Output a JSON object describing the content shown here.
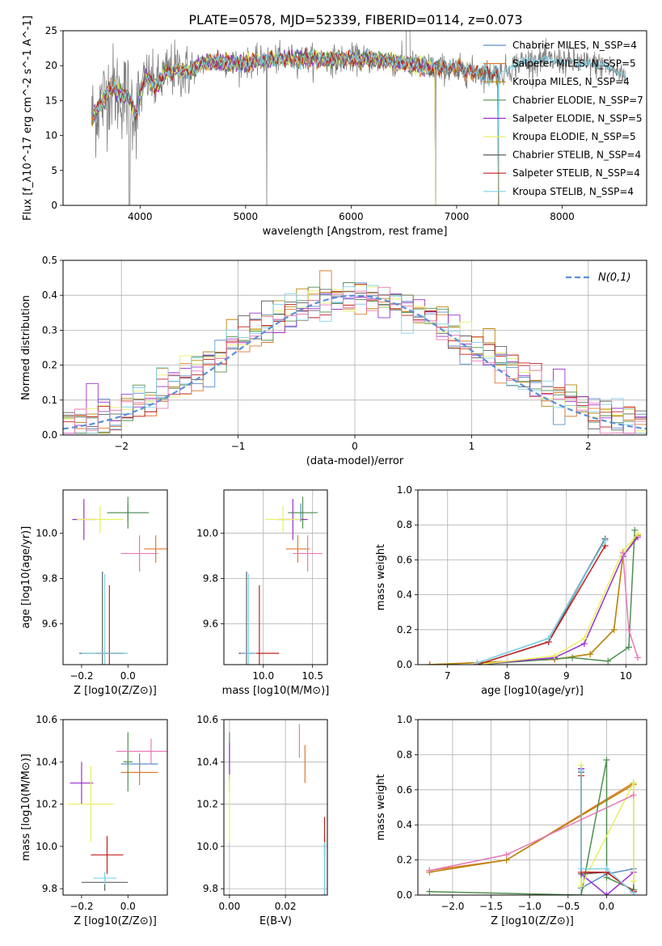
{
  "figure": {
    "title": "PLATE=0578, MJD=52339, FIBERID=0114, z=0.073"
  },
  "colors": {
    "Chabrier MILES": "#5b8fc9",
    "Salpeter MILES": "#e07a2f",
    "Kroupa MILES": "#b8860b",
    "Chabrier ELODIE": "#4f8f4f",
    "Salpeter ELODIE": "#9b30d0",
    "Kroupa ELODIE": "#e8f060",
    "Chabrier STELIB": "#606060",
    "Salpeter STELIB": "#c41e1e",
    "Kroupa STELIB": "#7fd3e8",
    "pink": "#e879b8",
    "normal": "#5b8fd9",
    "grid": "#b0b0b0"
  },
  "chart_data": [
    {
      "id": "spectrum",
      "type": "line",
      "xlabel": "wavelength [Angstrom, rest frame]",
      "ylabel": "Flux [f_λ10^-17 erg cm^-2 s^-1 A^-1]",
      "xlim": [
        3270,
        8800
      ],
      "ylim": [
        0,
        25
      ],
      "xticks": [
        4000,
        5000,
        6000,
        7000,
        8000
      ],
      "yticks": [
        0,
        5,
        10,
        15,
        20,
        25
      ],
      "grid": false,
      "legend_position": "top-right",
      "legend": [
        {
          "name": "Chabrier MILES",
          "sub": "N_SSP=4"
        },
        {
          "name": "Salpeter MILES",
          "sub": "N_SSP=5"
        },
        {
          "name": "Kroupa MILES",
          "sub": "N_SSP=4"
        },
        {
          "name": "Chabrier ELODIE",
          "sub": "N_SSP=7"
        },
        {
          "name": "Salpeter ELODIE",
          "sub": "N_SSP=5"
        },
        {
          "name": "Kroupa ELODIE",
          "sub": "N_SSP=5"
        },
        {
          "name": "Chabrier STELIB",
          "sub": "N_SSP=4"
        },
        {
          "name": "Salpeter STELIB",
          "sub": "N_SSP=4"
        },
        {
          "name": "Kroupa STELIB",
          "sub": "N_SSP=4"
        }
      ],
      "data_profile_x": [
        3540,
        3650,
        3720,
        3800,
        3900,
        3960,
        4050,
        4150,
        4250,
        4350,
        4450,
        4600,
        4800,
        5000,
        5200,
        5400,
        5600,
        5800,
        6000,
        6200,
        6400,
        6600,
        6800,
        7000,
        7200,
        7400,
        7600,
        7800,
        8000,
        8200,
        8400,
        8600
      ],
      "data_profile_y": [
        12.5,
        15.0,
        17.0,
        16.0,
        15.5,
        13.0,
        18.5,
        17.0,
        19.0,
        19.5,
        19.0,
        20.5,
        20.5,
        20.3,
        20.8,
        21.0,
        21.0,
        20.8,
        21.0,
        20.9,
        20.5,
        20.0,
        19.7,
        19.5,
        19.0,
        18.7,
        20.5,
        20.8,
        20.6,
        20.3,
        20.0,
        18.5
      ]
    },
    {
      "id": "residuals",
      "type": "histogram",
      "xlabel": "(data-model)/error",
      "ylabel": "Normed distribution",
      "xlim": [
        -2.5,
        2.5
      ],
      "ylim": [
        0,
        0.5
      ],
      "xticks": [
        -2,
        -1,
        0,
        1,
        2
      ],
      "yticks": [
        0.0,
        0.1,
        0.2,
        0.3,
        0.4,
        0.5
      ],
      "grid": true,
      "legend_position": "top-right",
      "legend": [
        {
          "name": "N(0,1)"
        }
      ],
      "bins_edges_range": [
        -2.5,
        2.5
      ],
      "n_bins": 50
    },
    {
      "id": "age-vs-Z",
      "type": "scatter",
      "xlabel": "Z [log10(Z/Z⊙)]",
      "ylabel": "age  [log10(age/yr)]",
      "xlim": [
        -0.28,
        0.17
      ],
      "ylim": [
        9.42,
        10.19
      ],
      "xticks": [
        -0.2,
        0.0
      ],
      "yticks": [
        9.6,
        9.8,
        10.0
      ],
      "grid": false,
      "points": [
        {
          "series": "Chabrier MILES",
          "x": 0.0,
          "y": 10.09,
          "xerr": 0.09,
          "yerr": 0.04
        },
        {
          "series": "Salpeter MILES",
          "x": 0.12,
          "y": 9.93,
          "xerr": 0.05,
          "yerr": 0.06
        },
        {
          "series": "Chabrier ELODIE",
          "x": 0.0,
          "y": 10.09,
          "xerr": 0.09,
          "yerr": 0.07
        },
        {
          "series": "Salpeter ELODIE",
          "x": -0.19,
          "y": 10.06,
          "xerr": 0.05,
          "yerr": 0.09
        },
        {
          "series": "Kroupa ELODIE",
          "x": -0.12,
          "y": 10.06,
          "xerr": 0.1,
          "yerr": 0.06
        },
        {
          "series": "Chabrier STELIB",
          "x": -0.11,
          "y": 9.47,
          "xerr": 0.1,
          "yerr": 0.36
        },
        {
          "series": "Salpeter STELIB",
          "x": -0.08,
          "y": 9.47,
          "xerr": 0.06,
          "yerr": 0.3
        },
        {
          "series": "Kroupa STELIB",
          "x": -0.1,
          "y": 9.47,
          "xerr": 0.1,
          "yerr": 0.35
        },
        {
          "series": "pink",
          "x": 0.05,
          "y": 9.91,
          "xerr": 0.08,
          "yerr": 0.08
        }
      ]
    },
    {
      "id": "age-vs-mass",
      "type": "scatter",
      "xlabel": "mass [log10(M/M⊙)]",
      "ylabel": "",
      "xlim": [
        9.6,
        10.65
      ],
      "ylim": [
        9.42,
        10.19
      ],
      "xticks": [
        10.0,
        10.5
      ],
      "yticks": [
        9.6,
        9.8,
        10.0
      ],
      "grid": true,
      "points": [
        {
          "series": "Chabrier MILES",
          "x": 10.38,
          "y": 10.09,
          "xerr": 0.12,
          "yerr": 0.04
        },
        {
          "series": "Salpeter MILES",
          "x": 10.35,
          "y": 9.93,
          "xerr": 0.12,
          "yerr": 0.06
        },
        {
          "series": "Chabrier ELODIE",
          "x": 10.4,
          "y": 10.09,
          "xerr": 0.15,
          "yerr": 0.07
        },
        {
          "series": "Salpeter ELODIE",
          "x": 10.3,
          "y": 10.06,
          "xerr": 0.15,
          "yerr": 0.09
        },
        {
          "series": "Kroupa ELODIE",
          "x": 10.2,
          "y": 10.06,
          "xerr": 0.18,
          "yerr": 0.06
        },
        {
          "series": "Chabrier STELIB",
          "x": 9.83,
          "y": 9.47,
          "xerr": 0.08,
          "yerr": 0.36
        },
        {
          "series": "Salpeter STELIB",
          "x": 9.96,
          "y": 9.47,
          "xerr": 0.2,
          "yerr": 0.3
        },
        {
          "series": "Kroupa STELIB",
          "x": 9.85,
          "y": 9.47,
          "xerr": 0.08,
          "yerr": 0.35
        },
        {
          "series": "pink",
          "x": 10.45,
          "y": 9.91,
          "xerr": 0.15,
          "yerr": 0.08
        }
      ]
    },
    {
      "id": "mass-weight-vs-age",
      "type": "line",
      "xlabel": "age  [log10(age/yr)]",
      "ylabel": "mass weight",
      "xlim": [
        6.5,
        10.35
      ],
      "ylim": [
        0,
        1.0
      ],
      "xticks": [
        7,
        8,
        9,
        10
      ],
      "yticks": [
        0.0,
        0.2,
        0.4,
        0.6,
        0.8,
        1.0
      ],
      "grid": true,
      "series": [
        {
          "name": "Chabrier MILES",
          "x": [
            7.5,
            8.7,
            9.65
          ],
          "y": [
            0.01,
            0.15,
            0.72
          ]
        },
        {
          "name": "Salpeter MILES",
          "x": [
            6.7,
            8.8,
            9.4,
            9.8,
            9.95,
            10.2
          ],
          "y": [
            0.0,
            0.03,
            0.06,
            0.2,
            0.62,
            0.74
          ]
        },
        {
          "name": "Kroupa MILES",
          "x": [
            6.7,
            8.8,
            9.4,
            9.8,
            9.95,
            10.2
          ],
          "y": [
            0.0,
            0.03,
            0.06,
            0.2,
            0.62,
            0.74
          ]
        },
        {
          "name": "Chabrier ELODIE",
          "x": [
            7.5,
            9.1,
            9.7,
            10.05,
            10.15
          ],
          "y": [
            0.0,
            0.04,
            0.02,
            0.1,
            0.77
          ]
        },
        {
          "name": "Salpeter ELODIE",
          "x": [
            7.5,
            8.8,
            9.3,
            9.95,
            10.2
          ],
          "y": [
            0.0,
            0.04,
            0.12,
            0.62,
            0.73
          ]
        },
        {
          "name": "Kroupa ELODIE",
          "x": [
            7.5,
            8.8,
            9.3,
            9.95,
            10.2
          ],
          "y": [
            0.0,
            0.05,
            0.15,
            0.65,
            0.75
          ]
        },
        {
          "name": "Chabrier STELIB",
          "x": [
            7.5,
            8.7,
            9.65
          ],
          "y": [
            0.0,
            0.13,
            0.72
          ]
        },
        {
          "name": "Salpeter STELIB",
          "x": [
            7.5,
            8.7,
            9.65
          ],
          "y": [
            0.0,
            0.13,
            0.68
          ]
        },
        {
          "name": "Kroupa STELIB",
          "x": [
            7.5,
            8.7,
            9.65
          ],
          "y": [
            0.01,
            0.15,
            0.71
          ]
        },
        {
          "name": "pink",
          "x": [
            9.95,
            10.05,
            10.2
          ],
          "y": [
            0.64,
            0.2,
            0.04
          ]
        }
      ]
    },
    {
      "id": "mass-vs-Z",
      "type": "scatter",
      "xlabel": "Z [log10(Z/Z⊙)]",
      "ylabel": "mass [log10(M/M⊙)]",
      "xlim": [
        -0.28,
        0.17
      ],
      "ylim": [
        9.77,
        10.6
      ],
      "xticks": [
        -0.2,
        0.0
      ],
      "yticks": [
        9.8,
        10.0,
        10.2,
        10.4,
        10.6
      ],
      "grid": false,
      "points": [
        {
          "series": "Chabrier MILES",
          "x": 0.05,
          "y": 10.39,
          "xerr": 0.08,
          "yerr": 0.05
        },
        {
          "series": "Salpeter MILES",
          "x": 0.05,
          "y": 10.35,
          "xerr": 0.08,
          "yerr": 0.06
        },
        {
          "series": "Chabrier ELODIE",
          "x": 0.0,
          "y": 10.4,
          "xerr": 0.02,
          "yerr": 0.14
        },
        {
          "series": "Salpeter ELODIE",
          "x": -0.2,
          "y": 10.3,
          "xerr": 0.05,
          "yerr": 0.1
        },
        {
          "series": "Kroupa ELODIE",
          "x": -0.16,
          "y": 10.2,
          "xerr": 0.1,
          "yerr": 0.18
        },
        {
          "series": "Chabrier STELIB",
          "x": -0.1,
          "y": 9.83,
          "xerr": 0.1,
          "yerr": 0.04
        },
        {
          "series": "Salpeter STELIB",
          "x": -0.09,
          "y": 9.96,
          "xerr": 0.07,
          "yerr": 0.09
        },
        {
          "series": "Kroupa STELIB",
          "x": -0.1,
          "y": 9.85,
          "xerr": 0.05,
          "yerr": 0.03
        },
        {
          "series": "pink",
          "x": 0.1,
          "y": 10.45,
          "xerr": 0.15,
          "yerr": 0.06
        }
      ]
    },
    {
      "id": "mass-vs-EBV",
      "type": "scatter",
      "xlabel": "E(B-V)",
      "ylabel": "",
      "xlim": [
        -0.002,
        0.035
      ],
      "ylim": [
        9.77,
        10.6
      ],
      "xticks": [
        0.0,
        0.02
      ],
      "yticks": [
        9.8,
        10.0,
        10.2,
        10.4,
        10.6
      ],
      "grid": true,
      "points": [
        {
          "series": "Chabrier MILES",
          "x": 0.034,
          "y": 9.9,
          "xerr": 0,
          "yerr": 0.14
        },
        {
          "series": "Salpeter MILES",
          "x": 0.027,
          "y": 10.39,
          "xerr": 0,
          "yerr": 0.09
        },
        {
          "series": "Chabrier ELODIE",
          "x": 0.0,
          "y": 10.4,
          "xerr": 0,
          "yerr": 0.14
        },
        {
          "series": "Salpeter ELODIE",
          "x": 0.0,
          "y": 10.4,
          "xerr": 0,
          "yerr": 0.09
        },
        {
          "series": "Kroupa ELODIE",
          "x": 0.0,
          "y": 10.18,
          "xerr": 0,
          "yerr": 0.16
        },
        {
          "series": "Chabrier STELIB",
          "x": 0.034,
          "y": 9.9,
          "xerr": 0,
          "yerr": 0.11
        },
        {
          "series": "Salpeter STELIB",
          "x": 0.034,
          "y": 10.05,
          "xerr": 0,
          "yerr": 0.09
        },
        {
          "series": "Kroupa STELIB",
          "x": 0.034,
          "y": 9.9,
          "xerr": 0,
          "yerr": 0.12
        },
        {
          "series": "pink",
          "x": 0.025,
          "y": 10.5,
          "xerr": 0,
          "yerr": 0.08
        }
      ]
    },
    {
      "id": "mass-weight-vs-Z",
      "type": "line",
      "xlabel": "Z [log10(Z/Z⊙)]",
      "ylabel": "mass weight",
      "xlim": [
        -2.45,
        0.52
      ],
      "ylim": [
        0,
        1.0
      ],
      "xticks": [
        -2.0,
        -1.5,
        -1.0,
        -0.5,
        0.0
      ],
      "yticks": [
        0.0,
        0.2,
        0.4,
        0.6,
        0.8,
        1.0
      ],
      "grid": true,
      "series": [
        {
          "name": "Chabrier MILES",
          "x": [
            -0.33,
            -0.33,
            0.0,
            0.35,
            0.35
          ],
          "y": [
            0.72,
            0.04,
            0.12,
            0.15,
            0.02
          ]
        },
        {
          "name": "Salpeter MILES",
          "x": [
            -2.3,
            -1.3,
            0.35,
            0.35
          ],
          "y": [
            0.14,
            0.2,
            0.64,
            0.02
          ]
        },
        {
          "name": "Kroupa MILES",
          "x": [
            -2.3,
            -1.3,
            0.35,
            0.35
          ],
          "y": [
            0.13,
            0.2,
            0.63,
            0.03
          ]
        },
        {
          "name": "Chabrier ELODIE",
          "x": [
            -2.3,
            -0.33,
            0.0,
            0.0,
            0.35,
            0.35
          ],
          "y": [
            0.02,
            0.0,
            0.77,
            0.1,
            0.03,
            0.64
          ]
        },
        {
          "name": "Salpeter ELODIE",
          "x": [
            -0.33,
            -0.33,
            0.0,
            0.35
          ],
          "y": [
            0.72,
            0.12,
            0.0,
            0.13
          ]
        },
        {
          "name": "Kroupa ELODIE",
          "x": [
            -0.33,
            -0.33,
            0.35,
            0.35
          ],
          "y": [
            0.74,
            0.05,
            0.64,
            0.08
          ]
        },
        {
          "name": "Chabrier STELIB",
          "x": [
            -0.33,
            -0.33,
            0.0,
            0.35
          ],
          "y": [
            0.7,
            0.12,
            0.13,
            0.02
          ]
        },
        {
          "name": "Salpeter STELIB",
          "x": [
            -0.33,
            -0.33,
            0.0,
            0.35
          ],
          "y": [
            0.68,
            0.13,
            0.13,
            0.02
          ]
        },
        {
          "name": "Kroupa STELIB",
          "x": [
            -0.33,
            -0.33,
            0.0,
            0.35
          ],
          "y": [
            0.71,
            0.15,
            0.15,
            0.01
          ]
        },
        {
          "name": "pink",
          "x": [
            -2.3,
            -1.3,
            0.35
          ],
          "y": [
            0.14,
            0.23,
            0.57
          ]
        }
      ]
    }
  ]
}
